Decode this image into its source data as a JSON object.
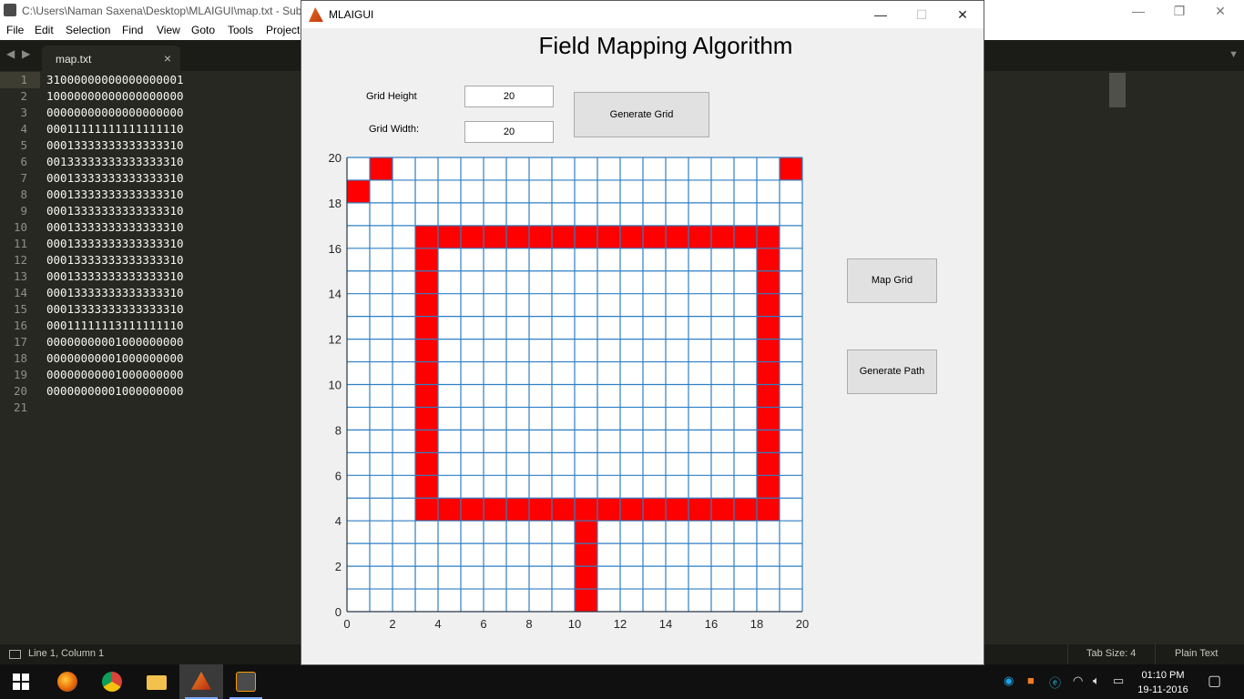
{
  "editor": {
    "title": "C:\\Users\\Naman Saxena\\Desktop\\MLAIGUI\\map.txt - Sublime Text",
    "menu": [
      "File",
      "Edit",
      "Selection",
      "Find",
      "View",
      "Goto",
      "Tools",
      "Project"
    ],
    "tab_name": "map.txt",
    "tab_close": "×",
    "line_numbers": [
      "1",
      "2",
      "3",
      "4",
      "5",
      "6",
      "7",
      "8",
      "9",
      "10",
      "11",
      "12",
      "13",
      "14",
      "15",
      "16",
      "17",
      "18",
      "19",
      "20",
      "21"
    ],
    "lines": [
      "31000000000000000001",
      "10000000000000000000",
      "00000000000000000000",
      "00011111111111111110",
      "00013333333333333310",
      "00133333333333333310",
      "00013333333333333310",
      "00013333333333333310",
      "00013333333333333310",
      "00013333333333333310",
      "00013333333333333310",
      "00013333333333333310",
      "00013333333333333310",
      "00013333333333333310",
      "00013333333333333310",
      "00011111113111111110",
      "00000000001000000000",
      "00000000001000000000",
      "00000000001000000000",
      "00000000001000000000",
      ""
    ],
    "status": {
      "position": "Line 1, Column 1",
      "tab_size": "Tab Size: 4",
      "syntax": "Plain Text"
    }
  },
  "figure": {
    "window_title": "MLAIGUI",
    "heading": "Field Mapping Algorithm",
    "grid_height_label": "Grid Height",
    "grid_width_label": "Grid Width:",
    "grid_height_value": "20",
    "grid_width_value": "20",
    "buttons": {
      "generate_grid": "Generate Grid",
      "map_grid": "Map Grid",
      "generate_path": "Generate Path"
    }
  },
  "chart_data": {
    "type": "heatmap",
    "title": "",
    "xlim": [
      0,
      20
    ],
    "ylim": [
      0,
      20
    ],
    "xticks": [
      "0",
      "2",
      "4",
      "6",
      "8",
      "10",
      "12",
      "14",
      "16",
      "18",
      "20"
    ],
    "yticks": [
      "0",
      "2",
      "4",
      "6",
      "8",
      "10",
      "12",
      "14",
      "16",
      "18",
      "20"
    ],
    "grid": true,
    "cell_colors": {
      "empty": "#ffffff",
      "obstacle": "#ff0000",
      "gridline": "#2e7fc4"
    },
    "obstacle_cells": [
      [
        1,
        19
      ],
      [
        19,
        19
      ],
      [
        0,
        18
      ],
      [
        3,
        16
      ],
      [
        4,
        16
      ],
      [
        5,
        16
      ],
      [
        6,
        16
      ],
      [
        7,
        16
      ],
      [
        8,
        16
      ],
      [
        9,
        16
      ],
      [
        10,
        16
      ],
      [
        11,
        16
      ],
      [
        12,
        16
      ],
      [
        13,
        16
      ],
      [
        14,
        16
      ],
      [
        15,
        16
      ],
      [
        16,
        16
      ],
      [
        17,
        16
      ],
      [
        18,
        16
      ],
      [
        3,
        15
      ],
      [
        3,
        14
      ],
      [
        3,
        13
      ],
      [
        3,
        12
      ],
      [
        3,
        11
      ],
      [
        3,
        10
      ],
      [
        3,
        9
      ],
      [
        3,
        8
      ],
      [
        3,
        7
      ],
      [
        3,
        6
      ],
      [
        3,
        5
      ],
      [
        18,
        15
      ],
      [
        18,
        14
      ],
      [
        18,
        13
      ],
      [
        18,
        12
      ],
      [
        18,
        11
      ],
      [
        18,
        10
      ],
      [
        18,
        9
      ],
      [
        18,
        8
      ],
      [
        18,
        7
      ],
      [
        18,
        6
      ],
      [
        18,
        5
      ],
      [
        3,
        4
      ],
      [
        4,
        4
      ],
      [
        5,
        4
      ],
      [
        6,
        4
      ],
      [
        7,
        4
      ],
      [
        8,
        4
      ],
      [
        9,
        4
      ],
      [
        10,
        4
      ],
      [
        11,
        4
      ],
      [
        12,
        4
      ],
      [
        13,
        4
      ],
      [
        14,
        4
      ],
      [
        15,
        4
      ],
      [
        16,
        4
      ],
      [
        17,
        4
      ],
      [
        18,
        4
      ],
      [
        10,
        3
      ],
      [
        10,
        2
      ],
      [
        10,
        1
      ],
      [
        10,
        0
      ]
    ]
  },
  "taskbar": {
    "clock_time": "01:10 PM",
    "clock_date": "19-11-2016",
    "apps": [
      "firefox",
      "chrome",
      "file-explorer",
      "matlab",
      "sublime-text"
    ]
  }
}
